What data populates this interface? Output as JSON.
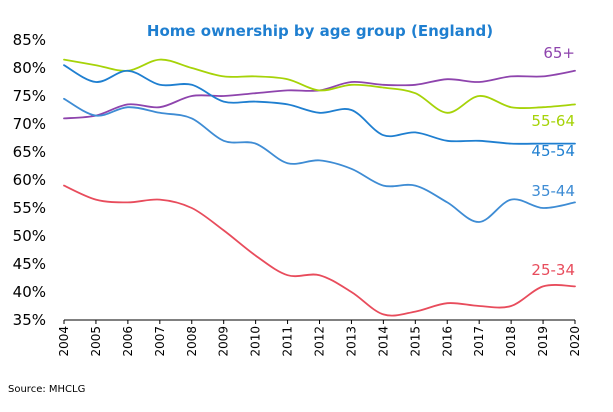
{
  "chart_data": {
    "type": "line",
    "title": "Home ownership by age group (England)",
    "source": "Source: MHCLG",
    "x": [
      "2004",
      "2005",
      "2006",
      "2007",
      "2008",
      "2009",
      "2010",
      "2011",
      "2012",
      "2013",
      "2014",
      "2015",
      "2016",
      "2017",
      "2018",
      "2019",
      "2020"
    ],
    "y_ticks": [
      "35%",
      "40%",
      "45%",
      "50%",
      "55%",
      "60%",
      "65%",
      "70%",
      "75%",
      "80%",
      "85%"
    ],
    "ylim": [
      35,
      85
    ],
    "grid": false,
    "series": [
      {
        "name": "65+",
        "color": "#8E44AD",
        "values": [
          71,
          71.5,
          73.5,
          73,
          75,
          75,
          75.5,
          76,
          76,
          77.5,
          77,
          77,
          78,
          77.5,
          78.5,
          78.5,
          79.5
        ]
      },
      {
        "name": "55-64",
        "color": "#A6D308",
        "values": [
          81.5,
          80.5,
          79.5,
          81.5,
          80,
          78.5,
          78.5,
          78,
          76,
          77,
          76.5,
          75.5,
          72,
          75,
          73,
          73,
          73.5
        ]
      },
      {
        "name": "45-54",
        "color": "#1F7FD0",
        "values": [
          80.5,
          77.5,
          79.5,
          77,
          77,
          74,
          74,
          73.5,
          72,
          72.5,
          68,
          68.5,
          67,
          67,
          66.5,
          66.5,
          66.5
        ]
      },
      {
        "name": "35-44",
        "color": "#3E8CD4",
        "values": [
          74.5,
          71.5,
          73,
          72,
          71,
          67,
          66.5,
          63,
          63.5,
          62,
          59,
          59,
          56,
          52.5,
          56.5,
          55,
          56
        ]
      },
      {
        "name": "25-34",
        "color": "#E84C5C",
        "values": [
          59,
          56.5,
          56,
          56.5,
          55,
          51,
          46.5,
          43,
          43,
          40,
          36,
          36.5,
          38,
          37.5,
          37.5,
          41,
          41
        ]
      }
    ]
  }
}
